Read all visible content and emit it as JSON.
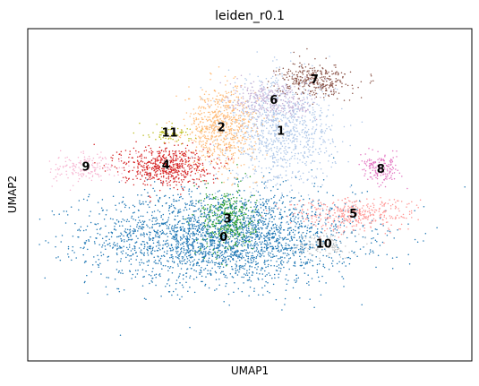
{
  "chart_data": {
    "type": "scatter",
    "title": "leiden_r0.1",
    "xlabel": "UMAP1",
    "ylabel": "UMAP2",
    "xlim": [
      0,
      100
    ],
    "ylim": [
      0,
      100
    ],
    "grid": false,
    "legend": "on data",
    "ticks": "none",
    "clusters": [
      {
        "label": "0",
        "color": "#1f77b4",
        "x": 44.1,
        "y": 37.1,
        "sx": 15,
        "sy": 7,
        "n": 2800
      },
      {
        "label": "1",
        "color": "#aec7e8",
        "x": 57.0,
        "y": 69.0,
        "sx": 6,
        "sy": 8,
        "n": 1000
      },
      {
        "label": "2",
        "color": "#ffbb78",
        "x": 43.6,
        "y": 70.1,
        "sx": 4,
        "sy": 6,
        "n": 700
      },
      {
        "label": "3",
        "color": "#2ca02c",
        "x": 45.0,
        "y": 42.6,
        "sx": 3,
        "sy": 5,
        "n": 350
      },
      {
        "label": "4",
        "color": "#d62728",
        "x": 31.1,
        "y": 58.7,
        "sx": 5,
        "sy": 3,
        "n": 600
      },
      {
        "label": "5",
        "color": "#ff9896",
        "x": 73.3,
        "y": 44.1,
        "sx": 7,
        "sy": 2.5,
        "n": 380
      },
      {
        "label": "6",
        "color": "#c5b0d5",
        "x": 55.4,
        "y": 78.3,
        "sx": 5,
        "sy": 3,
        "n": 320
      },
      {
        "label": "7",
        "color": "#8c564b",
        "x": 64.6,
        "y": 84.5,
        "sx": 4,
        "sy": 2.5,
        "n": 330
      },
      {
        "label": "8",
        "color": "#e377c2",
        "x": 79.5,
        "y": 57.6,
        "sx": 2.2,
        "sy": 2,
        "n": 160
      },
      {
        "label": "9",
        "color": "#f7b6d2",
        "x": 13.1,
        "y": 58.2,
        "sx": 4,
        "sy": 2.2,
        "n": 170
      },
      {
        "label": "10",
        "color": "#c7c7c7",
        "x": 66.7,
        "y": 35.0,
        "sx": 3,
        "sy": 1.8,
        "n": 120
      },
      {
        "label": "11",
        "color": "#bcbd22",
        "x": 32.0,
        "y": 68.5,
        "sx": 2.5,
        "sy": 1.6,
        "n": 70
      }
    ]
  }
}
